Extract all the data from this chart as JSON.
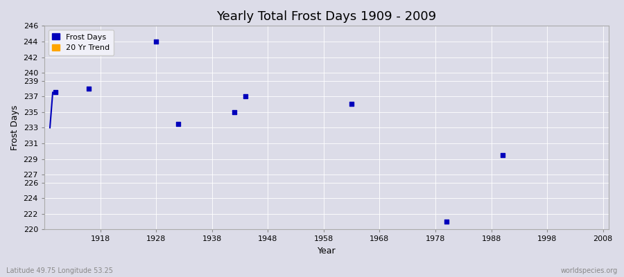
{
  "title": "Yearly Total Frost Days 1909 - 2009",
  "xlabel": "Year",
  "ylabel": "Frost Days",
  "bottom_left_text": "Latitude 49.75 Longitude 53.25",
  "bottom_right_text": "worldspecies.org",
  "xlim": [
    1908,
    2009
  ],
  "ylim": [
    220,
    246
  ],
  "xticks": [
    1918,
    1928,
    1938,
    1948,
    1958,
    1968,
    1978,
    1988,
    1998,
    2008
  ],
  "yticks": [
    220,
    222,
    224,
    226,
    227,
    229,
    231,
    233,
    235,
    237,
    239,
    240,
    242,
    244,
    246
  ],
  "background_color": "#dcdce8",
  "plot_bg_color": "#dcdce8",
  "grid_color": "#ffffff",
  "frost_days_x": [
    1910,
    1916,
    1928,
    1932,
    1942,
    1944,
    1963,
    1980,
    1990
  ],
  "frost_days_y": [
    237.5,
    238.0,
    244.0,
    233.5,
    235.0,
    237.0,
    236.0,
    221.0,
    229.5
  ],
  "trend_x": [
    1909,
    1909.5
  ],
  "trend_y": [
    233.0,
    237.5
  ],
  "frost_color": "#0000bb",
  "trend_color": "#0000bb",
  "trend_legend_color": "#ffa500",
  "marker_size": 5,
  "title_fontsize": 13,
  "axis_label_fontsize": 9,
  "tick_fontsize": 8,
  "legend_fontsize": 8
}
